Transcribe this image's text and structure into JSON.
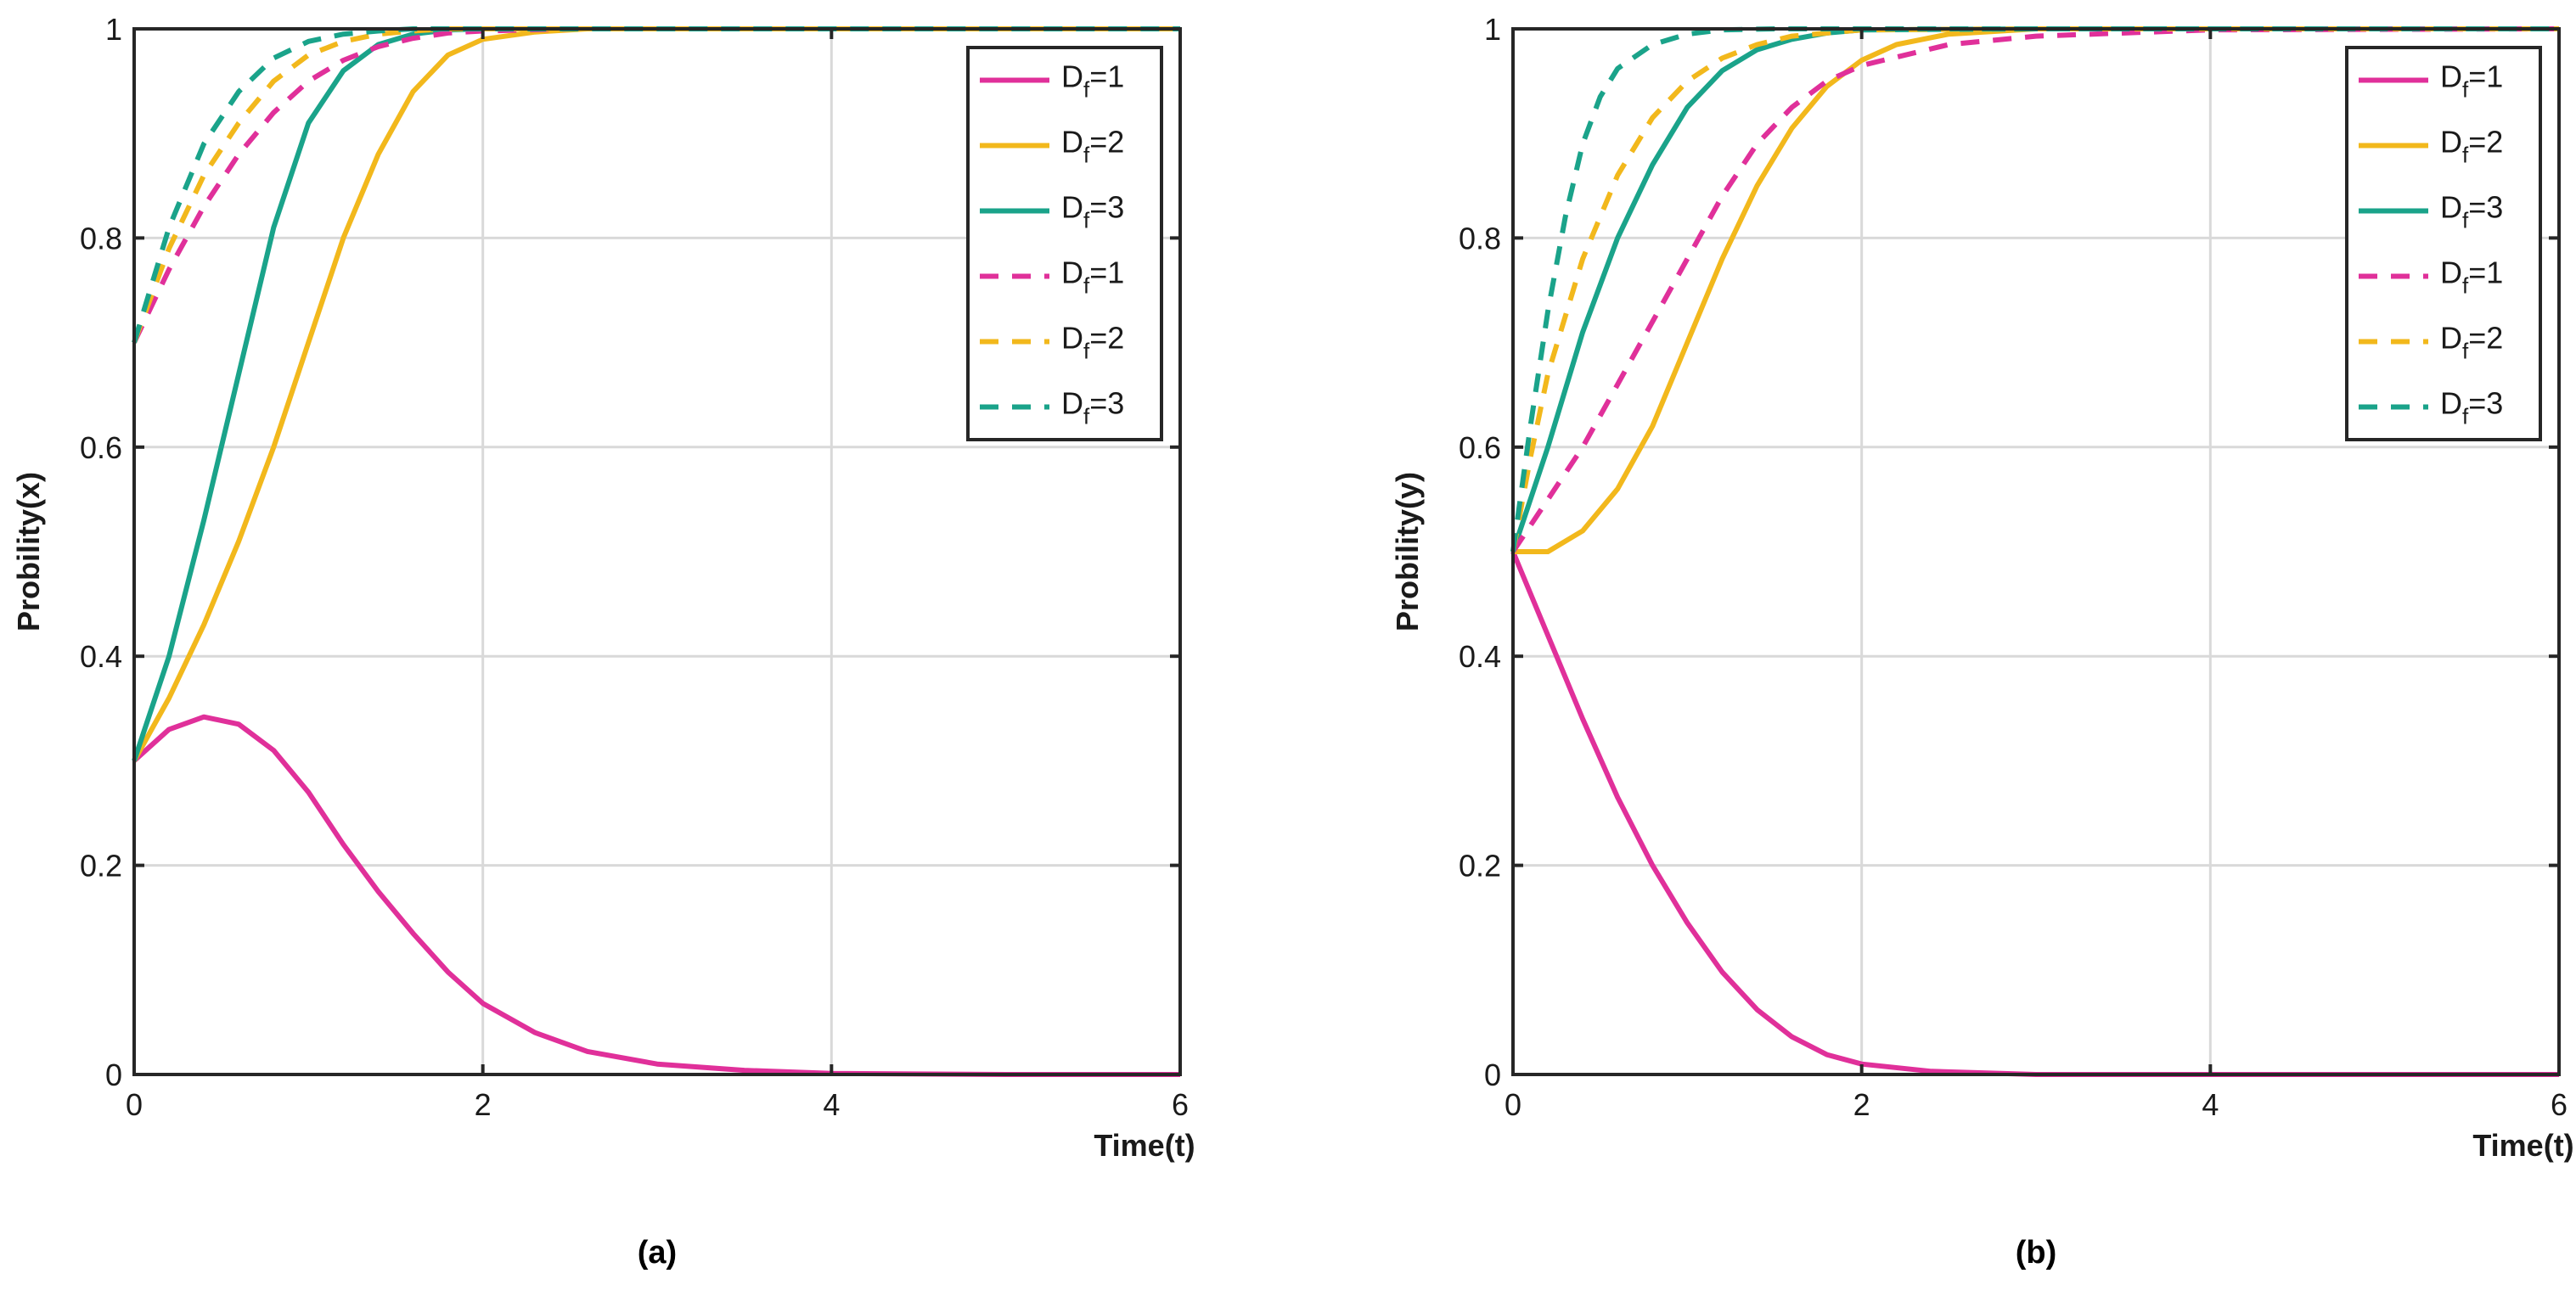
{
  "chart_data": [
    {
      "type": "line",
      "caption": "(a)",
      "xlabel": "Time(t)",
      "ylabel": "Probility(x)",
      "xlim": [
        0,
        6
      ],
      "ylim": [
        0,
        1
      ],
      "xticks": [
        "0",
        "2",
        "4",
        "6"
      ],
      "yticks": [
        "0",
        "0.2",
        "0.4",
        "0.6",
        "0.8",
        "1"
      ],
      "grid": true,
      "legend": "top-right",
      "series": [
        {
          "name": "Df=1",
          "label_main": "D",
          "label_sub": "f",
          "label_rest": "=1",
          "color": "#e0309a",
          "style": "solid",
          "x": [
            0,
            0.2,
            0.4,
            0.6,
            0.8,
            1.0,
            1.2,
            1.4,
            1.6,
            1.8,
            2.0,
            2.3,
            2.6,
            3.0,
            3.5,
            4.0,
            5.0,
            6.0
          ],
          "y": [
            0.3,
            0.33,
            0.342,
            0.335,
            0.31,
            0.27,
            0.22,
            0.175,
            0.135,
            0.098,
            0.068,
            0.04,
            0.022,
            0.01,
            0.004,
            0.001,
            0.0,
            0.0
          ]
        },
        {
          "name": "Df=2",
          "label_main": "D",
          "label_sub": "f",
          "label_rest": "=2",
          "color": "#f2b81c",
          "style": "solid",
          "x": [
            0,
            0.2,
            0.4,
            0.6,
            0.8,
            1.0,
            1.2,
            1.4,
            1.6,
            1.8,
            2.0,
            2.3,
            2.6,
            3.0,
            4.0,
            6.0
          ],
          "y": [
            0.3,
            0.36,
            0.43,
            0.51,
            0.6,
            0.7,
            0.8,
            0.88,
            0.94,
            0.975,
            0.99,
            0.997,
            1.0,
            1.0,
            1.0,
            1.0
          ]
        },
        {
          "name": "Df=3",
          "label_main": "D",
          "label_sub": "f",
          "label_rest": "=3",
          "color": "#1aa38a",
          "style": "solid",
          "x": [
            0,
            0.2,
            0.4,
            0.6,
            0.8,
            1.0,
            1.2,
            1.4,
            1.6,
            1.8,
            2.0,
            2.4,
            3.0,
            4.0,
            6.0
          ],
          "y": [
            0.3,
            0.4,
            0.53,
            0.67,
            0.81,
            0.91,
            0.96,
            0.985,
            0.995,
            0.999,
            1.0,
            1.0,
            1.0,
            1.0,
            1.0
          ]
        },
        {
          "name": "Df=1",
          "label_main": "D",
          "label_sub": "f",
          "label_rest": "=1",
          "color": "#e0309a",
          "style": "dashed",
          "x": [
            0,
            0.2,
            0.4,
            0.6,
            0.8,
            1.0,
            1.2,
            1.4,
            1.6,
            1.8,
            2.0,
            2.5,
            3.0,
            4.0,
            6.0
          ],
          "y": [
            0.7,
            0.77,
            0.83,
            0.88,
            0.92,
            0.95,
            0.97,
            0.983,
            0.991,
            0.996,
            0.998,
            1.0,
            1.0,
            1.0,
            1.0
          ]
        },
        {
          "name": "Df=2",
          "label_main": "D",
          "label_sub": "f",
          "label_rest": "=2",
          "color": "#f2b81c",
          "style": "dashed",
          "x": [
            0,
            0.2,
            0.4,
            0.6,
            0.8,
            1.0,
            1.2,
            1.4,
            1.6,
            1.8,
            2.0,
            3.0,
            4.0,
            6.0
          ],
          "y": [
            0.7,
            0.79,
            0.86,
            0.91,
            0.95,
            0.975,
            0.988,
            0.995,
            0.998,
            1.0,
            1.0,
            1.0,
            1.0,
            1.0
          ]
        },
        {
          "name": "Df=3",
          "label_main": "D",
          "label_sub": "f",
          "label_rest": "=3",
          "color": "#1aa38a",
          "style": "dashed",
          "x": [
            0,
            0.2,
            0.4,
            0.6,
            0.8,
            1.0,
            1.2,
            1.4,
            1.6,
            2.0,
            3.0,
            4.0,
            6.0
          ],
          "y": [
            0.7,
            0.81,
            0.89,
            0.94,
            0.972,
            0.988,
            0.995,
            0.998,
            1.0,
            1.0,
            1.0,
            1.0,
            1.0
          ]
        }
      ]
    },
    {
      "type": "line",
      "caption": "(b)",
      "xlabel": "Time(t)",
      "ylabel": "Probility(y)",
      "xlim": [
        0,
        6
      ],
      "ylim": [
        0,
        1
      ],
      "xticks": [
        "0",
        "2",
        "4",
        "6"
      ],
      "yticks": [
        "0",
        "0.2",
        "0.4",
        "0.6",
        "0.8",
        "1"
      ],
      "grid": true,
      "legend": "top-right",
      "series": [
        {
          "name": "Df=1",
          "label_main": "D",
          "label_sub": "f",
          "label_rest": "=1",
          "color": "#e0309a",
          "style": "solid",
          "x": [
            0,
            0.2,
            0.4,
            0.6,
            0.8,
            1.0,
            1.2,
            1.4,
            1.6,
            1.8,
            2.0,
            2.4,
            3.0,
            4.0,
            6.0
          ],
          "y": [
            0.5,
            0.42,
            0.34,
            0.265,
            0.2,
            0.145,
            0.098,
            0.062,
            0.036,
            0.019,
            0.01,
            0.003,
            0.0,
            0.0,
            0.0
          ]
        },
        {
          "name": "Df=2",
          "label_main": "D",
          "label_sub": "f",
          "label_rest": "=2",
          "color": "#f2b81c",
          "style": "solid",
          "x": [
            0,
            0.2,
            0.4,
            0.6,
            0.8,
            1.0,
            1.2,
            1.4,
            1.6,
            1.8,
            2.0,
            2.2,
            2.5,
            3.0,
            4.0,
            6.0
          ],
          "y": [
            0.5,
            0.5,
            0.52,
            0.56,
            0.62,
            0.7,
            0.78,
            0.85,
            0.905,
            0.945,
            0.97,
            0.985,
            0.995,
            1.0,
            1.0,
            1.0
          ]
        },
        {
          "name": "Df=3",
          "label_main": "D",
          "label_sub": "f",
          "label_rest": "=3",
          "color": "#1aa38a",
          "style": "solid",
          "x": [
            0,
            0.2,
            0.4,
            0.6,
            0.8,
            1.0,
            1.2,
            1.4,
            1.6,
            1.8,
            2.0,
            3.0,
            4.0,
            6.0
          ],
          "y": [
            0.5,
            0.6,
            0.71,
            0.8,
            0.87,
            0.925,
            0.96,
            0.98,
            0.99,
            0.996,
            0.999,
            1.0,
            1.0,
            1.0
          ]
        },
        {
          "name": "Df=1",
          "label_main": "D",
          "label_sub": "f",
          "label_rest": "=1",
          "color": "#e0309a",
          "style": "dashed",
          "x": [
            0,
            0.2,
            0.4,
            0.6,
            0.8,
            1.0,
            1.2,
            1.4,
            1.6,
            1.8,
            2.0,
            2.5,
            3.0,
            4.0,
            6.0
          ],
          "y": [
            0.5,
            0.55,
            0.6,
            0.66,
            0.72,
            0.78,
            0.84,
            0.89,
            0.925,
            0.95,
            0.965,
            0.985,
            0.993,
            0.999,
            1.0
          ]
        },
        {
          "name": "Df=2",
          "label_main": "D",
          "label_sub": "f",
          "label_rest": "=2",
          "color": "#f2b81c",
          "style": "dashed",
          "x": [
            0,
            0.1,
            0.2,
            0.4,
            0.6,
            0.8,
            1.0,
            1.2,
            1.4,
            1.6,
            2.0,
            3.0,
            4.0,
            6.0
          ],
          "y": [
            0.5,
            0.59,
            0.67,
            0.78,
            0.86,
            0.915,
            0.95,
            0.972,
            0.985,
            0.993,
            0.999,
            1.0,
            1.0,
            1.0
          ]
        },
        {
          "name": "Df=3",
          "label_main": "D",
          "label_sub": "f",
          "label_rest": "=3",
          "color": "#1aa38a",
          "style": "dashed",
          "x": [
            0,
            0.1,
            0.2,
            0.3,
            0.4,
            0.5,
            0.6,
            0.8,
            1.0,
            1.2,
            1.5,
            2.0,
            3.0,
            6.0
          ],
          "y": [
            0.5,
            0.62,
            0.73,
            0.82,
            0.89,
            0.935,
            0.962,
            0.985,
            0.995,
            0.999,
            1.0,
            1.0,
            1.0,
            1.0
          ]
        }
      ]
    }
  ]
}
